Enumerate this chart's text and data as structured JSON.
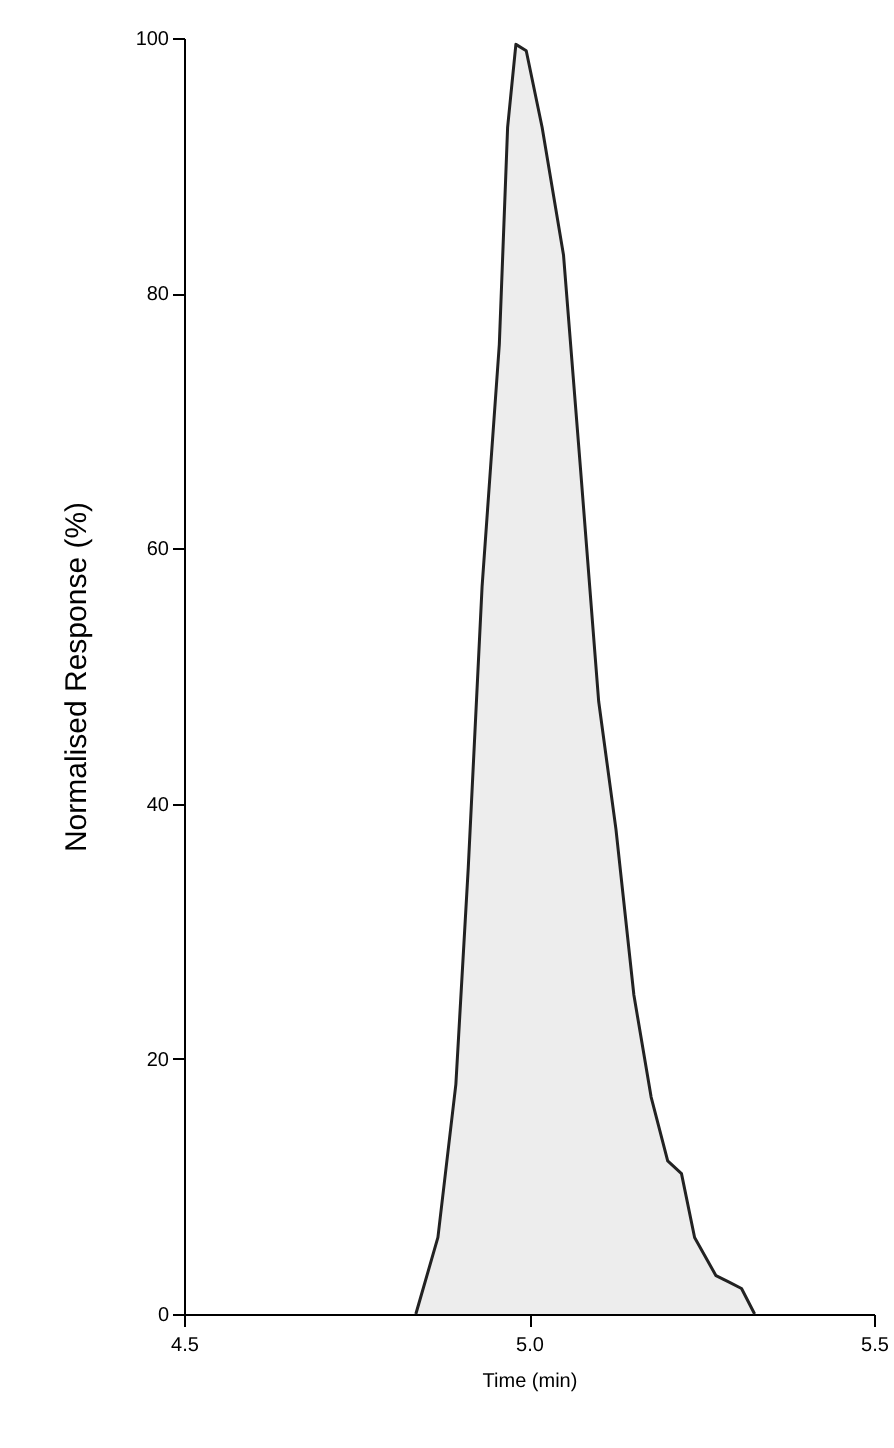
{
  "chart_data": {
    "type": "area",
    "xlabel": "Time (min)",
    "ylabel": "Normalised Response (%)",
    "x": [
      4.836,
      4.868,
      4.894,
      4.912,
      4.932,
      4.957,
      4.969,
      4.981,
      4.996,
      5.019,
      5.05,
      5.075,
      5.101,
      5.126,
      5.152,
      5.177,
      5.201,
      5.221,
      5.24,
      5.271,
      5.29,
      5.308,
      5.327
    ],
    "values": [
      0,
      6,
      18,
      35,
      57,
      76,
      93,
      99.5,
      99,
      93,
      83,
      66,
      48,
      38,
      25,
      17,
      12,
      11,
      6,
      3,
      2.5,
      2,
      0
    ],
    "color": "#e6e6e6",
    "xlim": [
      4.5,
      5.5
    ],
    "xticks": [
      4.5,
      {
        "value": 5,
        "label": "5.0"
      },
      5.5
    ],
    "ylim": [
      0,
      100
    ],
    "yticks": [
      0,
      20,
      40,
      60,
      80,
      100
    ],
    "grid": false
  }
}
